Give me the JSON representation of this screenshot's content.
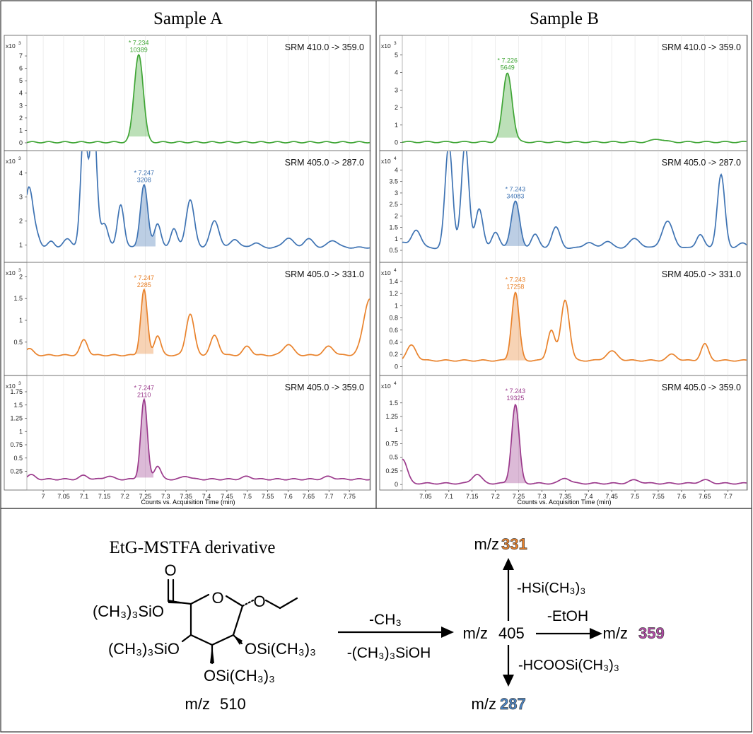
{
  "figure": {
    "panel_a_title": "Sample A",
    "panel_b_title": "Sample B",
    "x_axis_label": "Counts vs. Acquisition Time (min)"
  },
  "chart_data": [
    {
      "type": "line",
      "panel": "Sample A",
      "row": 0,
      "title": "SRM 410.0 -> 359.0",
      "color": "#3fa535",
      "y_exp_base": "x10",
      "y_exp_power": "3",
      "xlim": [
        6.96,
        7.8
      ],
      "ylim": [
        -0.4,
        8.2
      ],
      "x_ticks": [],
      "x_tick_labels": [],
      "y_ticks": [
        0,
        1,
        2,
        3,
        4,
        5,
        6,
        7
      ],
      "y_tick_labels": [
        "0",
        "1",
        "2",
        "3",
        "4",
        "5",
        "6",
        "7"
      ],
      "baseline": 0.05,
      "peaks": [
        {
          "x": 7.234,
          "h": 7.1,
          "w": 0.011
        }
      ],
      "shade": [
        7.21,
        7.26
      ],
      "annotation": {
        "line1": "* 7.234",
        "line2": "10389",
        "x": 7.234,
        "y": 7.1
      }
    },
    {
      "type": "line",
      "panel": "Sample A",
      "row": 1,
      "title": "SRM 405.0 -> 287.0",
      "color": "#3e73b3",
      "y_exp_base": "x10",
      "y_exp_power": "3",
      "xlim": [
        6.96,
        7.8
      ],
      "ylim": [
        0.4,
        4.7
      ],
      "x_ticks": [],
      "x_tick_labels": [],
      "y_ticks": [
        1,
        2,
        3,
        4
      ],
      "y_tick_labels": [
        "1",
        "2",
        "3",
        "4"
      ],
      "baseline": 0.9,
      "peaks": [
        {
          "x": 6.965,
          "h": 2.5,
          "w": 0.01
        },
        {
          "x": 6.985,
          "h": 0.4,
          "w": 0.008
        },
        {
          "x": 7.02,
          "h": 0.25,
          "w": 0.008
        },
        {
          "x": 7.06,
          "h": 0.35,
          "w": 0.01
        },
        {
          "x": 7.1,
          "h": 5.0,
          "w": 0.008
        },
        {
          "x": 7.123,
          "h": 5.5,
          "w": 0.008
        },
        {
          "x": 7.15,
          "h": 1.0,
          "w": 0.009
        },
        {
          "x": 7.19,
          "h": 1.8,
          "w": 0.008
        },
        {
          "x": 7.247,
          "h": 2.6,
          "w": 0.009
        },
        {
          "x": 7.28,
          "h": 1.0,
          "w": 0.008
        },
        {
          "x": 7.32,
          "h": 0.8,
          "w": 0.008
        },
        {
          "x": 7.36,
          "h": 2.0,
          "w": 0.01
        },
        {
          "x": 7.42,
          "h": 1.1,
          "w": 0.011
        },
        {
          "x": 7.47,
          "h": 0.35,
          "w": 0.01
        },
        {
          "x": 7.52,
          "h": 0.2,
          "w": 0.01
        },
        {
          "x": 7.6,
          "h": 0.4,
          "w": 0.012
        },
        {
          "x": 7.65,
          "h": 0.35,
          "w": 0.012
        },
        {
          "x": 7.71,
          "h": 0.3,
          "w": 0.012
        }
      ],
      "shade": [
        7.22,
        7.275
      ],
      "annotation": {
        "line1": "* 7.247",
        "line2": "3208",
        "x": 7.247,
        "y": 3.5
      }
    },
    {
      "type": "line",
      "panel": "Sample A",
      "row": 2,
      "title": "SRM 405.0 -> 331.0",
      "color": "#e9822b",
      "y_exp_base": "x10",
      "y_exp_power": "3",
      "xlim": [
        6.96,
        7.8
      ],
      "ylim": [
        -0.2,
        2.2
      ],
      "x_ticks": [],
      "x_tick_labels": [],
      "y_ticks": [
        0.5,
        1,
        1.5,
        2
      ],
      "y_tick_labels": [
        "0.5",
        "1",
        "1.5",
        "2"
      ],
      "baseline": 0.2,
      "peaks": [
        {
          "x": 6.965,
          "h": 0.15,
          "w": 0.01
        },
        {
          "x": 7.1,
          "h": 0.35,
          "w": 0.009
        },
        {
          "x": 7.247,
          "h": 1.5,
          "w": 0.008
        },
        {
          "x": 7.28,
          "h": 0.45,
          "w": 0.008
        },
        {
          "x": 7.36,
          "h": 0.95,
          "w": 0.01
        },
        {
          "x": 7.42,
          "h": 0.45,
          "w": 0.01
        },
        {
          "x": 7.5,
          "h": 0.2,
          "w": 0.01
        },
        {
          "x": 7.6,
          "h": 0.25,
          "w": 0.012
        },
        {
          "x": 7.7,
          "h": 0.2,
          "w": 0.012
        },
        {
          "x": 7.8,
          "h": 1.3,
          "w": 0.015
        }
      ],
      "shade": [
        7.225,
        7.27
      ],
      "annotation": {
        "line1": "* 7.247",
        "line2": "2285",
        "x": 7.247,
        "y": 1.7
      }
    },
    {
      "type": "line",
      "panel": "Sample A",
      "row": 3,
      "title": "SRM 405.0 -> 359.0",
      "color": "#9b3a8c",
      "y_exp_base": "x10",
      "y_exp_power": "3",
      "xlim": [
        6.96,
        7.8
      ],
      "ylim": [
        -0.05,
        1.95
      ],
      "x_ticks": [
        7,
        7.05,
        7.1,
        7.15,
        7.2,
        7.25,
        7.3,
        7.35,
        7.4,
        7.45,
        7.5,
        7.55,
        7.6,
        7.65,
        7.7,
        7.75
      ],
      "x_tick_labels": [
        "7",
        "7.05",
        "7.1",
        "7.15",
        "7.2",
        "7.25",
        "7.3",
        "7.35",
        "7.4",
        "7.45",
        "7.5",
        "7.55",
        "7.6",
        "7.65",
        "7.7",
        "7.75"
      ],
      "y_ticks": [
        0.25,
        0.5,
        0.75,
        1,
        1.25,
        1.5,
        1.75
      ],
      "y_tick_labels": [
        "0.25",
        "0.5",
        "0.75",
        "1",
        "1.25",
        "1.5",
        "1.75"
      ],
      "baseline": 0.1,
      "peaks": [
        {
          "x": 6.97,
          "h": 0.08,
          "w": 0.01
        },
        {
          "x": 7.1,
          "h": 0.07,
          "w": 0.01
        },
        {
          "x": 7.16,
          "h": 0.06,
          "w": 0.01
        },
        {
          "x": 7.247,
          "h": 1.5,
          "w": 0.008
        },
        {
          "x": 7.28,
          "h": 0.25,
          "w": 0.008
        },
        {
          "x": 7.35,
          "h": 0.06,
          "w": 0.01
        },
        {
          "x": 7.5,
          "h": 0.05,
          "w": 0.012
        },
        {
          "x": 7.7,
          "h": 0.05,
          "w": 0.012
        }
      ],
      "shade": [
        7.225,
        7.27
      ],
      "annotation": {
        "line1": "* 7.247",
        "line2": "2110",
        "x": 7.247,
        "y": 1.6
      }
    },
    {
      "type": "line",
      "panel": "Sample B",
      "row": 0,
      "title": "SRM 410.0 -> 359.0",
      "color": "#3fa535",
      "y_exp_base": "x10",
      "y_exp_power": "3",
      "xlim": [
        7.0,
        7.74
      ],
      "ylim": [
        -0.3,
        5.8
      ],
      "x_ticks": [],
      "x_tick_labels": [],
      "y_ticks": [
        0,
        1,
        2,
        3,
        4,
        5
      ],
      "y_tick_labels": [
        "0",
        "1",
        "2",
        "3",
        "4",
        "5"
      ],
      "baseline": 0.03,
      "peaks": [
        {
          "x": 7.226,
          "h": 3.95,
          "w": 0.01
        },
        {
          "x": 7.55,
          "h": 0.17,
          "w": 0.012
        }
      ],
      "shade": [
        7.205,
        7.25
      ],
      "annotation": {
        "line1": "* 7.226",
        "line2": "5649",
        "x": 7.226,
        "y": 4.0
      }
    },
    {
      "type": "line",
      "panel": "Sample B",
      "row": 1,
      "title": "SRM 405.0 -> 287.0",
      "color": "#3e73b3",
      "y_exp_base": "x10",
      "y_exp_power": "4",
      "xlim": [
        7.0,
        7.74
      ],
      "ylim": [
        0.1,
        4.6
      ],
      "x_ticks": [],
      "x_tick_labels": [],
      "y_ticks": [
        0.5,
        1,
        1.5,
        2,
        2.5,
        3,
        3.5,
        4
      ],
      "y_tick_labels": [
        "0.5",
        "1",
        "1.5",
        "2",
        "2.5",
        "3",
        "3.5",
        "4"
      ],
      "baseline": 0.6,
      "peaks": [
        {
          "x": 7.0,
          "h": 0.25,
          "w": 0.008
        },
        {
          "x": 7.03,
          "h": 0.8,
          "w": 0.01
        },
        {
          "x": 7.1,
          "h": 4.5,
          "w": 0.008
        },
        {
          "x": 7.135,
          "h": 4.5,
          "w": 0.008
        },
        {
          "x": 7.165,
          "h": 1.7,
          "w": 0.008
        },
        {
          "x": 7.2,
          "h": 0.7,
          "w": 0.008
        },
        {
          "x": 7.243,
          "h": 2.05,
          "w": 0.009
        },
        {
          "x": 7.285,
          "h": 0.6,
          "w": 0.008
        },
        {
          "x": 7.33,
          "h": 0.9,
          "w": 0.009
        },
        {
          "x": 7.4,
          "h": 0.25,
          "w": 0.01
        },
        {
          "x": 7.44,
          "h": 0.3,
          "w": 0.01
        },
        {
          "x": 7.5,
          "h": 0.4,
          "w": 0.012
        },
        {
          "x": 7.57,
          "h": 1.15,
          "w": 0.012
        },
        {
          "x": 7.64,
          "h": 0.6,
          "w": 0.008
        },
        {
          "x": 7.685,
          "h": 3.2,
          "w": 0.008
        },
        {
          "x": 7.73,
          "h": 0.2,
          "w": 0.01
        }
      ],
      "shade": [
        7.215,
        7.268
      ],
      "annotation": {
        "line1": "* 7.243",
        "line2": "34083",
        "x": 7.243,
        "y": 2.65
      }
    },
    {
      "type": "line",
      "panel": "Sample B",
      "row": 2,
      "title": "SRM 405.0 -> 331.0",
      "color": "#e9822b",
      "y_exp_base": "x10",
      "y_exp_power": "4",
      "xlim": [
        7.0,
        7.74
      ],
      "ylim": [
        -0.1,
        1.62
      ],
      "x_ticks": [],
      "x_tick_labels": [],
      "y_ticks": [
        0,
        0.2,
        0.4,
        0.6,
        0.8,
        1,
        1.2,
        1.4
      ],
      "y_tick_labels": [
        "0",
        "0.2",
        "0.4",
        "0.6",
        "0.8",
        "1",
        "1.2",
        "1.4"
      ],
      "baseline": 0.1,
      "peaks": [
        {
          "x": 7.02,
          "h": 0.25,
          "w": 0.01
        },
        {
          "x": 7.243,
          "h": 1.12,
          "w": 0.008
        },
        {
          "x": 7.32,
          "h": 0.5,
          "w": 0.008
        },
        {
          "x": 7.35,
          "h": 1.0,
          "w": 0.009
        },
        {
          "x": 7.45,
          "h": 0.15,
          "w": 0.012
        },
        {
          "x": 7.58,
          "h": 0.1,
          "w": 0.01
        },
        {
          "x": 7.65,
          "h": 0.27,
          "w": 0.008
        }
      ],
      "shade": [
        7.215,
        7.268
      ],
      "annotation": {
        "line1": "* 7.243",
        "line2": "17258",
        "x": 7.243,
        "y": 1.23
      }
    },
    {
      "type": "line",
      "panel": "Sample B",
      "row": 3,
      "title": "SRM 405.0 -> 359.0",
      "color": "#9b3a8c",
      "y_exp_base": "x10",
      "y_exp_power": "4",
      "xlim": [
        7.0,
        7.74
      ],
      "ylim": [
        -0.05,
        1.9
      ],
      "x_ticks": [
        7.05,
        7.1,
        7.15,
        7.2,
        7.25,
        7.3,
        7.35,
        7.4,
        7.45,
        7.5,
        7.55,
        7.6,
        7.65,
        7.7
      ],
      "x_tick_labels": [
        "7.05",
        "7.1",
        "7.15",
        "7.2",
        "7.25",
        "7.3",
        "7.35",
        "7.4",
        "7.45",
        "7.5",
        "7.55",
        "7.6",
        "7.65",
        "7.7"
      ],
      "y_ticks": [
        0,
        0.25,
        0.5,
        0.75,
        1,
        1.25,
        1.5
      ],
      "y_tick_labels": [
        "0",
        "0.25",
        "0.5",
        "0.75",
        "1",
        "1.25",
        "1.5"
      ],
      "baseline": 0.02,
      "peaks": [
        {
          "x": 7.0,
          "h": 0.45,
          "w": 0.01
        },
        {
          "x": 7.16,
          "h": 0.17,
          "w": 0.01
        },
        {
          "x": 7.243,
          "h": 1.45,
          "w": 0.008
        },
        {
          "x": 7.35,
          "h": 0.1,
          "w": 0.01
        },
        {
          "x": 7.5,
          "h": 0.06,
          "w": 0.012
        },
        {
          "x": 7.65,
          "h": 0.06,
          "w": 0.012
        }
      ],
      "shade": [
        7.215,
        7.268
      ],
      "annotation": {
        "line1": "* 7.243",
        "line2": "19325",
        "x": 7.243,
        "y": 1.5
      }
    }
  ],
  "scheme": {
    "derivative_title": "EtG-MSTFA derivative",
    "groups": {
      "upper_left": "(CH₃)₃SiO",
      "left": "(CH₃)₃SiO",
      "right": "OSi(CH₃)₃",
      "bottom": "OSi(CH₃)₃"
    },
    "parent_mz_prefix": "m/z",
    "parent_mz_value": "510",
    "arrow_label_top": "-CH₃",
    "arrow_label_bottom": "-(CH₃)₃SiOH",
    "precursor_mz_prefix": "m/z",
    "precursor_mz_value": "405",
    "loss_up": "-HSi(CH₃)₃",
    "loss_right": "-EtOH",
    "loss_down": "-HCOOSi(CH₃)₃",
    "product_up_prefix": "m/z",
    "product_up_value": "331",
    "product_right_prefix": "m/z",
    "product_right_value": "359",
    "product_down_prefix": "m/z",
    "product_down_value": "287",
    "color_331": "#e9822b",
    "color_359": "#b548a8",
    "color_287": "#4a86c8"
  }
}
